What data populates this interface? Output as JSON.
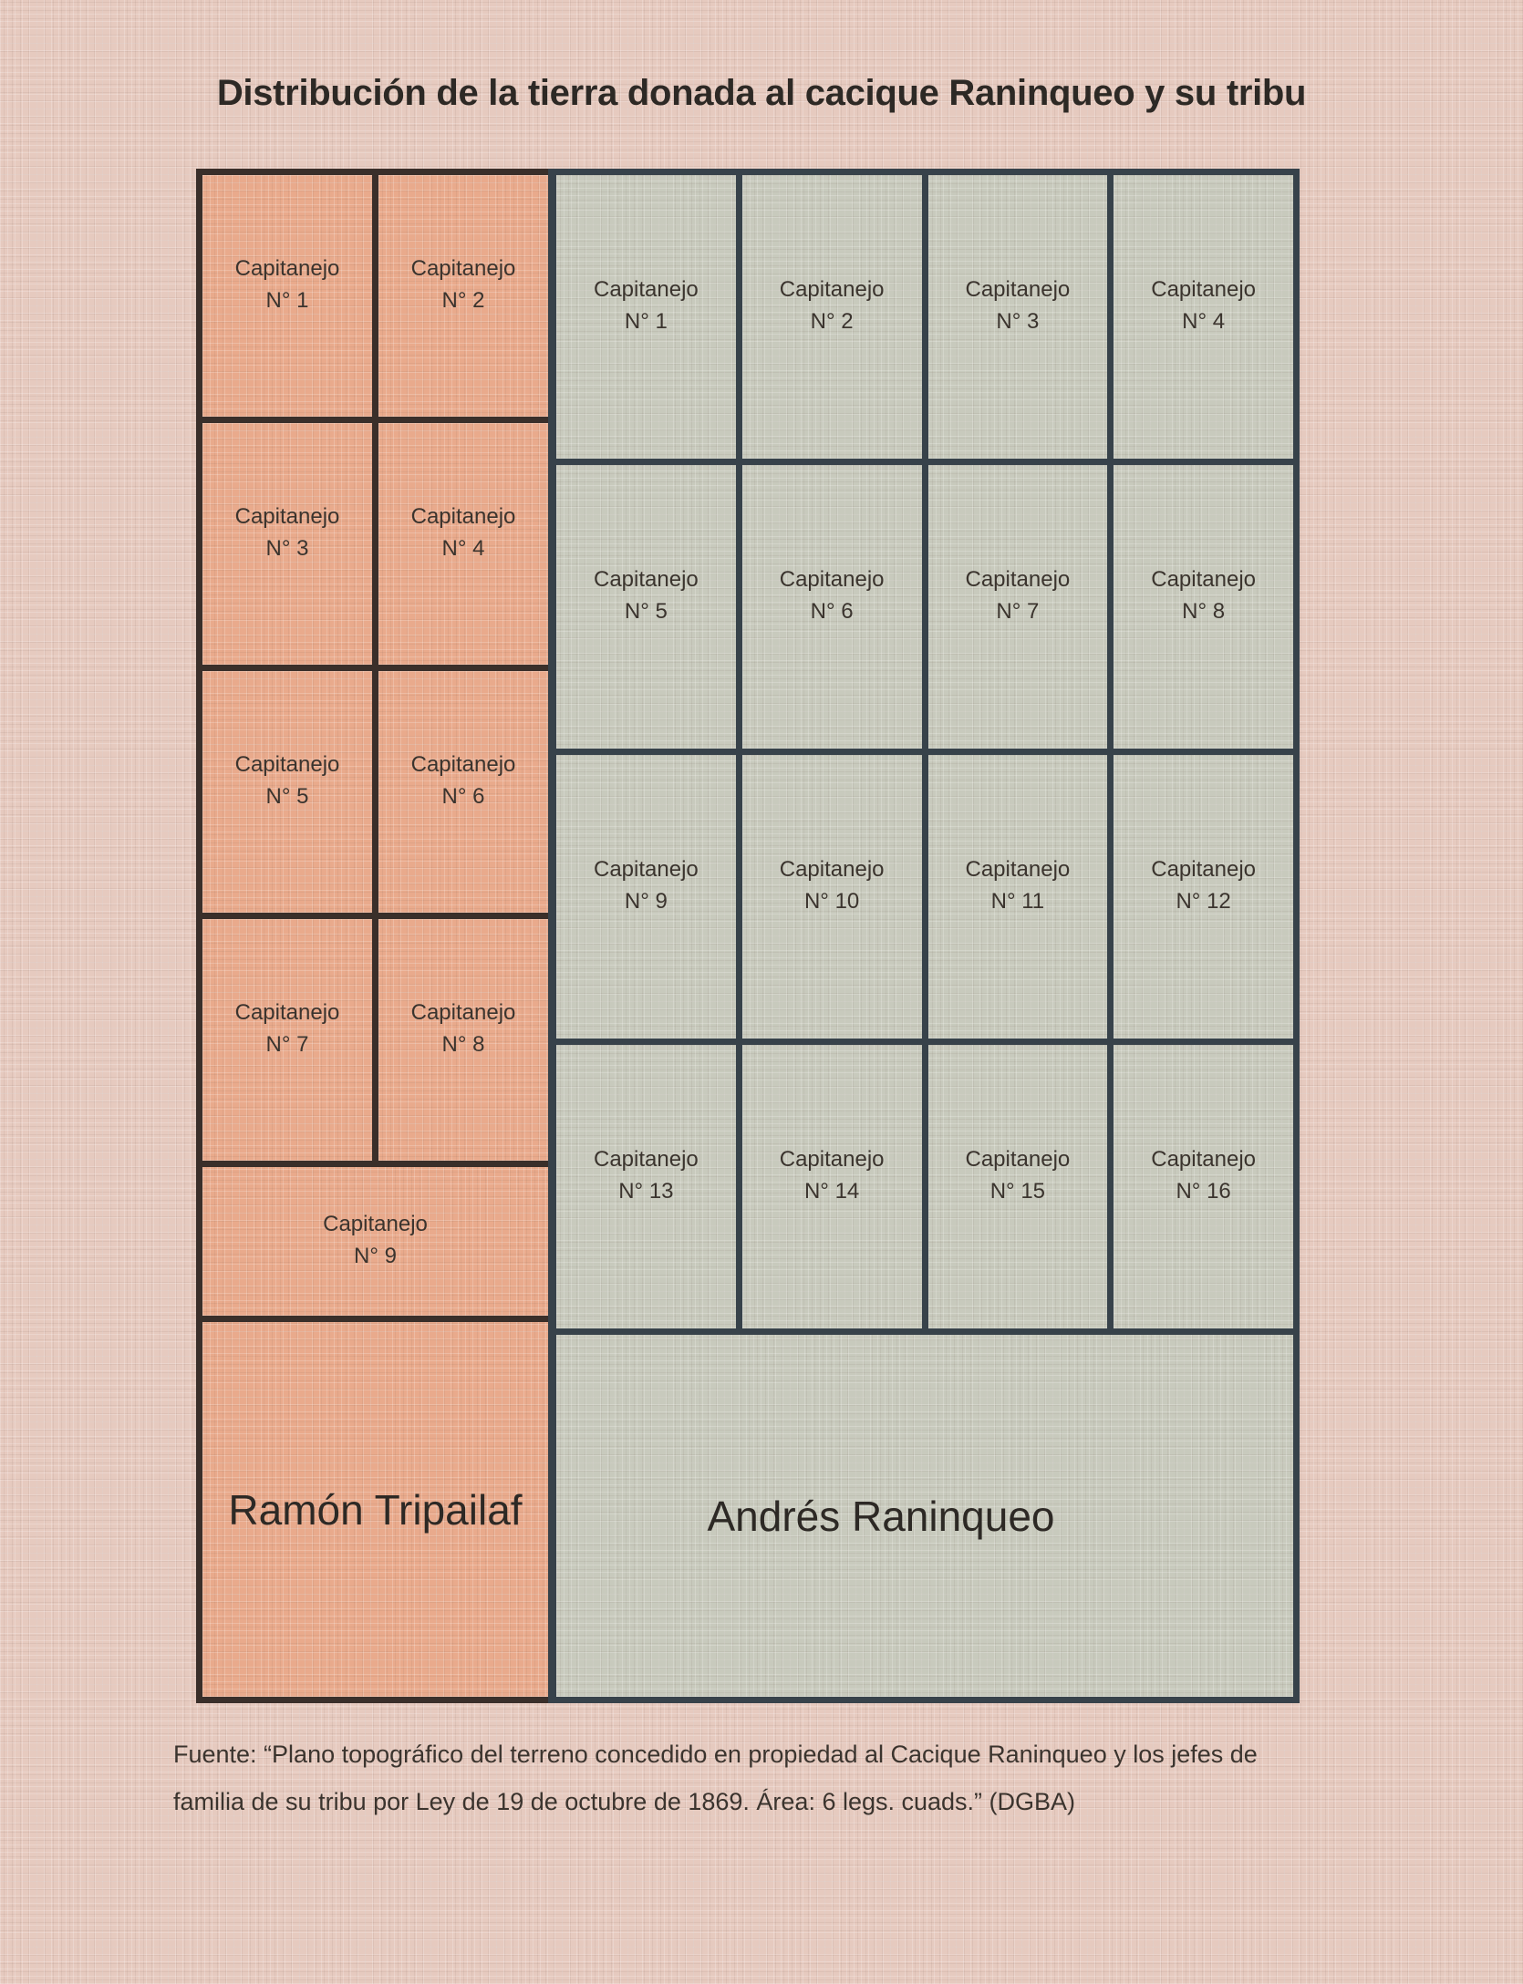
{
  "title": "Distribución de la tierra donada al cacique Raninqueo y su tribu",
  "left_section": {
    "owner": "Ramón Tripailaf",
    "plots": [
      {
        "name": "Capitanejo",
        "number": "N° 1"
      },
      {
        "name": "Capitanejo",
        "number": "N° 2"
      },
      {
        "name": "Capitanejo",
        "number": "N° 3"
      },
      {
        "name": "Capitanejo",
        "number": "N° 4"
      },
      {
        "name": "Capitanejo",
        "number": "N° 5"
      },
      {
        "name": "Capitanejo",
        "number": "N° 6"
      },
      {
        "name": "Capitanejo",
        "number": "N° 7"
      },
      {
        "name": "Capitanejo",
        "number": "N° 8"
      },
      {
        "name": "Capitanejo",
        "number": "N° 9"
      }
    ]
  },
  "right_section": {
    "owner": "Andrés Raninqueo",
    "plots": [
      {
        "name": "Capitanejo",
        "number": "N° 1"
      },
      {
        "name": "Capitanejo",
        "number": "N° 2"
      },
      {
        "name": "Capitanejo",
        "number": "N° 3"
      },
      {
        "name": "Capitanejo",
        "number": "N° 4"
      },
      {
        "name": "Capitanejo",
        "number": "N° 5"
      },
      {
        "name": "Capitanejo",
        "number": "N° 6"
      },
      {
        "name": "Capitanejo",
        "number": "N° 7"
      },
      {
        "name": "Capitanejo",
        "number": "N° 8"
      },
      {
        "name": "Capitanejo",
        "number": "N° 9"
      },
      {
        "name": "Capitanejo",
        "number": "N° 10"
      },
      {
        "name": "Capitanejo",
        "number": "N° 11"
      },
      {
        "name": "Capitanejo",
        "number": "N° 12"
      },
      {
        "name": "Capitanejo",
        "number": "N° 13"
      },
      {
        "name": "Capitanejo",
        "number": "N° 14"
      },
      {
        "name": "Capitanejo",
        "number": "N° 15"
      },
      {
        "name": "Capitanejo",
        "number": "N° 16"
      }
    ]
  },
  "caption": {
    "line1": "Fuente: “Plano topográfico del terreno concedido en propiedad al Cacique Raninqueo y los jefes de",
    "line2": "familia de su tribu por Ley de 19 de octubre de 1869. Área: 6 legs. cuads.”  (DGBA)"
  },
  "colors": {
    "page_bg": "#e6cabf",
    "salmon_fill": "#e9aa8c",
    "gray_fill": "#c8cabd",
    "salmon_border": "#3a2f2a",
    "gray_border": "#37424a",
    "ink": "#3b342e",
    "ink_strong": "#2d2925"
  }
}
